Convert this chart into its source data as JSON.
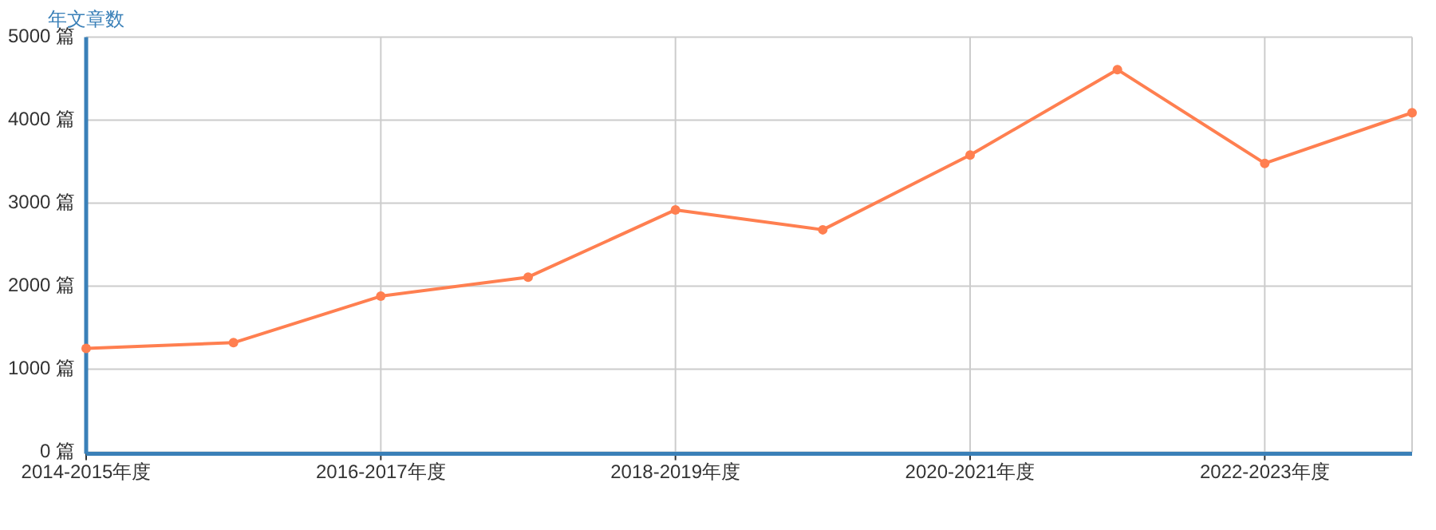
{
  "chart_data": {
    "type": "line",
    "ylabel": "年文章数",
    "categories": [
      "2014-2015年度",
      null,
      "2016-2017年度",
      null,
      "2018-2019年度",
      null,
      "2020-2021年度",
      null,
      "2022-2023年度",
      null
    ],
    "series": [
      {
        "color": "#ff7f50",
        "values": [
          1250,
          1320,
          1880,
          2110,
          2920,
          2680,
          3580,
          4610,
          3480,
          4090
        ]
      }
    ],
    "ylim": [
      0,
      5000
    ],
    "yticks": [
      {
        "value": 0,
        "label": "0 篇"
      },
      {
        "value": 1000,
        "label": "1000 篇"
      },
      {
        "value": 2000,
        "label": "2000 篇"
      },
      {
        "value": 3000,
        "label": "3000 篇"
      },
      {
        "value": 4000,
        "label": "4000 篇"
      },
      {
        "value": 5000,
        "label": "5000 篇"
      }
    ],
    "grid": true,
    "marker": "circle",
    "line_style": "solid"
  }
}
